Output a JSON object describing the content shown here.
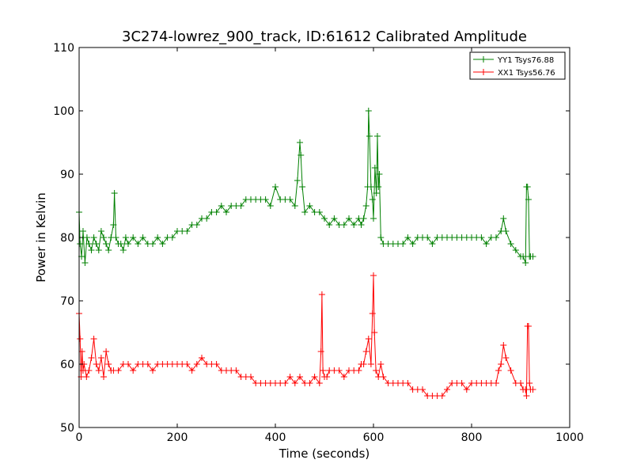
{
  "chart_data": {
    "type": "line",
    "title": "3C274-lowrez_900_track, ID:61612 Calibrated Amplitude",
    "xlabel": "Time (seconds)",
    "ylabel": "Power in Kelvin",
    "xlim": [
      0,
      1000
    ],
    "ylim": [
      50,
      110
    ],
    "x_ticks": [
      "0",
      "200",
      "400",
      "600",
      "800",
      "1000"
    ],
    "y_ticks": [
      "50",
      "60",
      "70",
      "80",
      "90",
      "100",
      "110"
    ],
    "grid": false,
    "legend_position": "top-right",
    "marker": "plus",
    "series": [
      {
        "name": "YY1 Tsys76.88",
        "color": "#008000",
        "x": [
          0,
          2,
          5,
          8,
          12,
          16,
          20,
          25,
          30,
          35,
          40,
          45,
          50,
          55,
          60,
          65,
          70,
          72,
          75,
          80,
          85,
          90,
          95,
          100,
          110,
          120,
          130,
          140,
          150,
          160,
          170,
          180,
          190,
          200,
          210,
          220,
          230,
          240,
          250,
          260,
          270,
          280,
          290,
          300,
          310,
          320,
          330,
          340,
          350,
          360,
          370,
          380,
          390,
          400,
          410,
          420,
          430,
          440,
          445,
          450,
          452,
          455,
          460,
          470,
          480,
          490,
          500,
          510,
          520,
          530,
          540,
          550,
          560,
          570,
          575,
          580,
          585,
          588,
          590,
          592,
          595,
          598,
          600,
          603,
          606,
          608,
          610,
          612,
          615,
          620,
          630,
          640,
          650,
          660,
          670,
          680,
          690,
          700,
          710,
          720,
          730,
          740,
          750,
          760,
          770,
          780,
          790,
          800,
          810,
          820,
          830,
          840,
          850,
          860,
          865,
          870,
          880,
          890,
          900,
          905,
          910,
          912,
          914,
          916,
          918,
          920,
          925
        ],
        "y": [
          84,
          79,
          77,
          81,
          76,
          80,
          79,
          78,
          80,
          79,
          78,
          81,
          80,
          79,
          78,
          80,
          82,
          87,
          80,
          79,
          79,
          78,
          80,
          79,
          80,
          79,
          80,
          79,
          79,
          80,
          79,
          80,
          80,
          81,
          81,
          81,
          82,
          82,
          83,
          83,
          84,
          84,
          85,
          84,
          85,
          85,
          85,
          86,
          86,
          86,
          86,
          86,
          85,
          88,
          86,
          86,
          86,
          85,
          89,
          95,
          93,
          88,
          84,
          85,
          84,
          84,
          83,
          82,
          83,
          82,
          82,
          83,
          82,
          83,
          82,
          83,
          85,
          88,
          100,
          96,
          88,
          86,
          83,
          91,
          87,
          96,
          88,
          90,
          80,
          79,
          79,
          79,
          79,
          79,
          80,
          79,
          80,
          80,
          80,
          79,
          80,
          80,
          80,
          80,
          80,
          80,
          80,
          80,
          80,
          80,
          79,
          80,
          80,
          81,
          83,
          81,
          79,
          78,
          77,
          77,
          76,
          88,
          88,
          86,
          77,
          77,
          77
        ]
      },
      {
        "name": "XX1 Tsys56.76",
        "color": "#ff0000",
        "x": [
          0,
          2,
          4,
          6,
          8,
          10,
          15,
          20,
          25,
          30,
          35,
          40,
          45,
          50,
          55,
          60,
          65,
          70,
          80,
          90,
          100,
          110,
          120,
          130,
          140,
          150,
          160,
          170,
          180,
          190,
          200,
          210,
          220,
          230,
          240,
          250,
          260,
          270,
          280,
          290,
          300,
          310,
          320,
          330,
          340,
          350,
          360,
          370,
          380,
          390,
          400,
          410,
          420,
          430,
          440,
          450,
          460,
          470,
          480,
          490,
          493,
          495,
          497,
          500,
          505,
          510,
          520,
          530,
          540,
          550,
          560,
          570,
          575,
          580,
          585,
          590,
          595,
          598,
          600,
          602,
          605,
          610,
          615,
          620,
          630,
          640,
          650,
          660,
          670,
          680,
          690,
          700,
          710,
          720,
          730,
          740,
          750,
          760,
          770,
          780,
          790,
          800,
          810,
          820,
          830,
          840,
          850,
          855,
          860,
          865,
          870,
          880,
          890,
          900,
          905,
          910,
          912,
          914,
          916,
          918,
          920,
          925
        ],
        "y": [
          68,
          64,
          58,
          62,
          59,
          60,
          58,
          59,
          61,
          64,
          60,
          59,
          61,
          58,
          62,
          60,
          59,
          59,
          59,
          60,
          60,
          59,
          60,
          60,
          60,
          59,
          60,
          60,
          60,
          60,
          60,
          60,
          60,
          59,
          60,
          61,
          60,
          60,
          60,
          59,
          59,
          59,
          59,
          58,
          58,
          58,
          57,
          57,
          57,
          57,
          57,
          57,
          57,
          58,
          57,
          58,
          57,
          57,
          58,
          57,
          62,
          71,
          59,
          58,
          58,
          59,
          59,
          59,
          58,
          59,
          59,
          59,
          60,
          60,
          62,
          64,
          60,
          68,
          74,
          65,
          59,
          58,
          60,
          58,
          57,
          57,
          57,
          57,
          57,
          56,
          56,
          56,
          55,
          55,
          55,
          55,
          56,
          57,
          57,
          57,
          56,
          57,
          57,
          57,
          57,
          57,
          57,
          59,
          60,
          63,
          61,
          59,
          57,
          57,
          56,
          56,
          55,
          66,
          66,
          57,
          56,
          56
        ]
      }
    ]
  }
}
